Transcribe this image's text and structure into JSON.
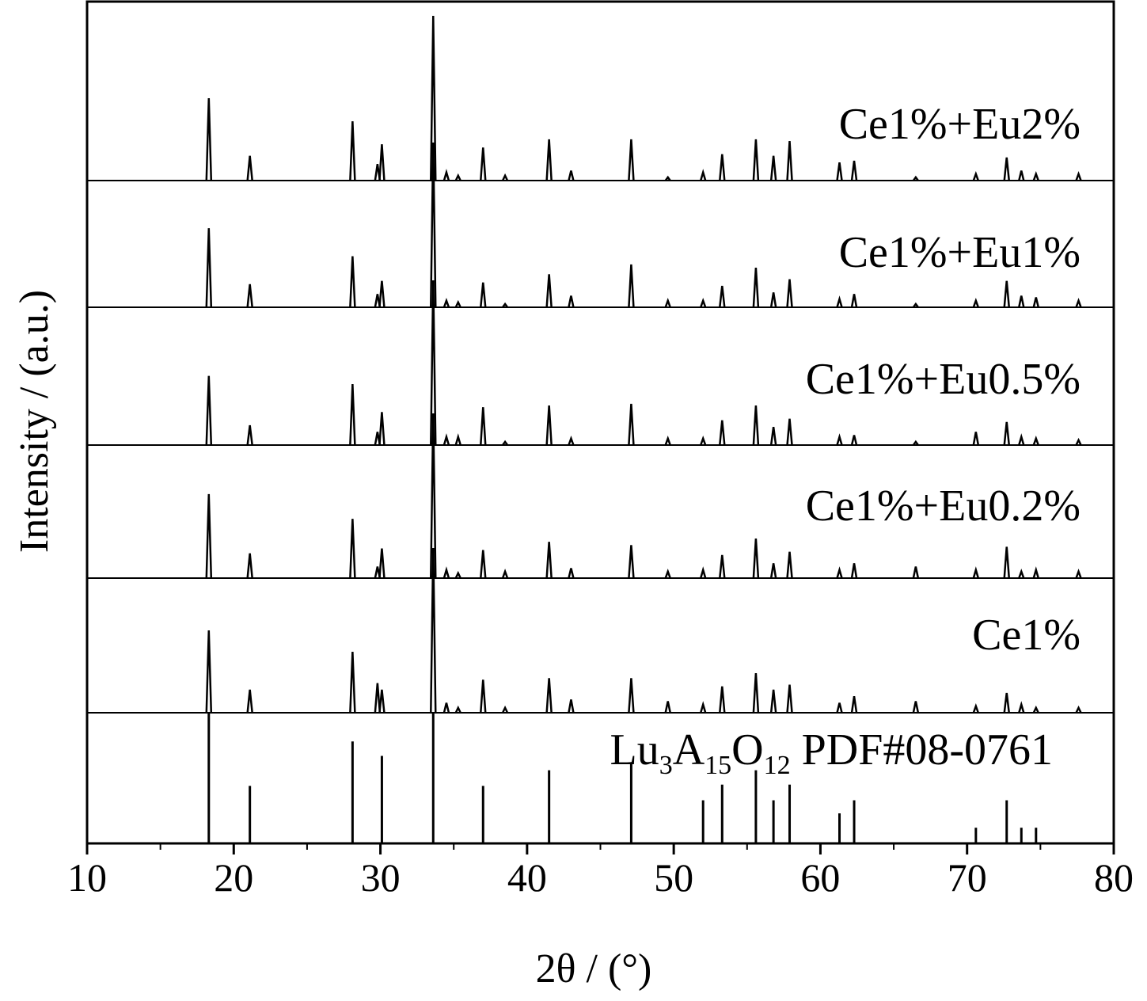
{
  "chart_data": {
    "type": "xrd-stack",
    "xlabel": "2θ / (°)",
    "ylabel": "Intensity / (a.u.)",
    "xlim": [
      10,
      80
    ],
    "xticks": [
      10,
      20,
      30,
      40,
      50,
      60,
      70,
      80
    ],
    "x": [
      18.3,
      21.1,
      28.1,
      29.8,
      30.1,
      33.6,
      34.5,
      35.3,
      37.0,
      38.5,
      41.5,
      43.0,
      47.1,
      49.6,
      52.0,
      53.3,
      55.6,
      56.8,
      57.9,
      61.3,
      62.3,
      66.5,
      70.6,
      72.7,
      73.7,
      74.7,
      77.6
    ],
    "series": [
      {
        "name": "Ce1%+Eu2%",
        "color": "#000000",
        "values": [
          50,
          15,
          36,
          10,
          22,
          100,
          5,
          3,
          20,
          3,
          25,
          6,
          25,
          2,
          5,
          16,
          25,
          15,
          24,
          11,
          12,
          2,
          4,
          14,
          6,
          4,
          4
        ]
      },
      {
        "name": "Ce1%+Eu1%",
        "color": "#000000",
        "values": [
          48,
          14,
          31,
          8,
          16,
          100,
          4,
          3,
          15,
          2,
          20,
          7,
          26,
          4,
          4,
          13,
          24,
          9,
          17,
          5,
          8,
          2,
          4,
          16,
          7,
          6,
          4
        ]
      },
      {
        "name": "Ce1%+Eu0.5%",
        "color": "#000000",
        "values": [
          42,
          12,
          37,
          8,
          20,
          100,
          5,
          5,
          23,
          2,
          24,
          4,
          25,
          4,
          4,
          15,
          24,
          11,
          16,
          5,
          6,
          2,
          8,
          14,
          5,
          4,
          3
        ]
      },
      {
        "name": "Ce1%+Eu0.2%",
        "color": "#000000",
        "values": [
          51,
          15,
          36,
          7,
          18,
          100,
          5,
          3,
          17,
          4,
          22,
          6,
          20,
          4,
          5,
          14,
          24,
          9,
          16,
          5,
          9,
          7,
          5,
          19,
          4,
          5,
          4
        ]
      },
      {
        "name": "Ce1%",
        "color": "#000000",
        "values": [
          50,
          14,
          37,
          18,
          14,
          100,
          6,
          3,
          20,
          3,
          21,
          8,
          21,
          7,
          5,
          16,
          24,
          14,
          17,
          6,
          10,
          7,
          4,
          12,
          5,
          3,
          3
        ]
      }
    ],
    "reference": {
      "label_parts": [
        "Lu",
        "3",
        "A",
        "15",
        "O",
        "12",
        " PDF#08-0761"
      ],
      "color": "#000000",
      "x": [
        18.3,
        21.1,
        28.1,
        30.1,
        33.6,
        37.0,
        41.5,
        47.1,
        52.0,
        53.3,
        55.6,
        56.8,
        57.9,
        61.3,
        62.3,
        70.6,
        72.7,
        73.7,
        74.7
      ],
      "values": [
        100,
        44,
        78,
        67,
        100,
        44,
        56,
        62,
        33,
        45,
        56,
        33,
        45,
        23,
        33,
        12,
        33,
        12,
        12
      ]
    }
  }
}
